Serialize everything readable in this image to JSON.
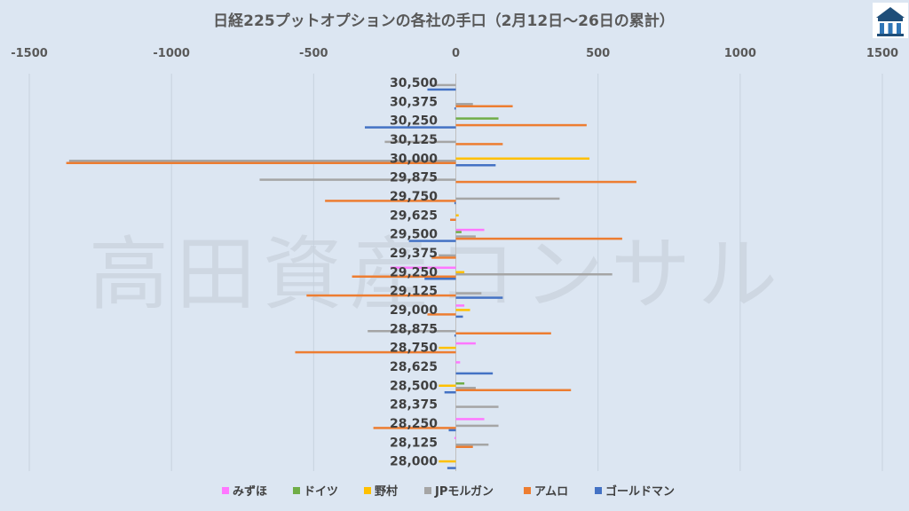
{
  "watermark": "高田資産コンサル",
  "chart_data": {
    "type": "bar",
    "orientation": "horizontal",
    "title": "日経225プットオプションの各社の手口（2月12日～26日の累計）",
    "xlim": [
      -1500,
      1500
    ],
    "xticks": [
      -1500,
      -1000,
      -500,
      0,
      500,
      1000,
      1500
    ],
    "xtick_labels": [
      "-1500",
      "-1000",
      "-500",
      "0",
      "500",
      "1000",
      "1500"
    ],
    "grid": true,
    "legend_position": "bottom",
    "categories": [
      "30,500",
      "30,375",
      "30,250",
      "30,125",
      "30,000",
      "29,875",
      "29,750",
      "29,625",
      "29,500",
      "29,375",
      "29,250",
      "29,125",
      "29,000",
      "28,875",
      "28,750",
      "28,625",
      "28,500",
      "28,375",
      "28,250",
      "28,125",
      "28,000"
    ],
    "series": [
      {
        "name": "みずほ",
        "color": "#ff77ff",
        "values": [
          0,
          0,
          0,
          0,
          0,
          0,
          0,
          0,
          100,
          0,
          -230,
          0,
          30,
          0,
          70,
          15,
          0,
          0,
          100,
          -5,
          0
        ]
      },
      {
        "name": "ドイツ",
        "color": "#70ad47",
        "values": [
          0,
          0,
          150,
          0,
          0,
          0,
          0,
          0,
          20,
          0,
          0,
          0,
          0,
          0,
          0,
          0,
          30,
          0,
          0,
          0,
          0
        ]
      },
      {
        "name": "野村",
        "color": "#ffc000",
        "values": [
          0,
          0,
          0,
          0,
          470,
          0,
          0,
          10,
          0,
          0,
          30,
          0,
          50,
          0,
          -60,
          0,
          -60,
          0,
          0,
          0,
          -60
        ]
      },
      {
        "name": "JPモルガン",
        "color": "#a5a5a5",
        "values": [
          -90,
          60,
          0,
          -250,
          -1360,
          -690,
          365,
          0,
          70,
          -60,
          550,
          90,
          0,
          -310,
          0,
          0,
          70,
          150,
          150,
          115,
          0
        ]
      },
      {
        "name": "アムロ",
        "color": "#ed7d31",
        "values": [
          0,
          200,
          460,
          165,
          -1370,
          635,
          -460,
          -20,
          585,
          -85,
          -365,
          -525,
          -100,
          335,
          -565,
          0,
          405,
          0,
          -290,
          60,
          0
        ]
      },
      {
        "name": "ゴールドマン",
        "color": "#4472c4",
        "values": [
          -100,
          -5,
          -320,
          0,
          140,
          0,
          -5,
          0,
          -165,
          0,
          -110,
          165,
          25,
          -5,
          0,
          130,
          -40,
          0,
          -25,
          0,
          -30
        ]
      }
    ]
  }
}
